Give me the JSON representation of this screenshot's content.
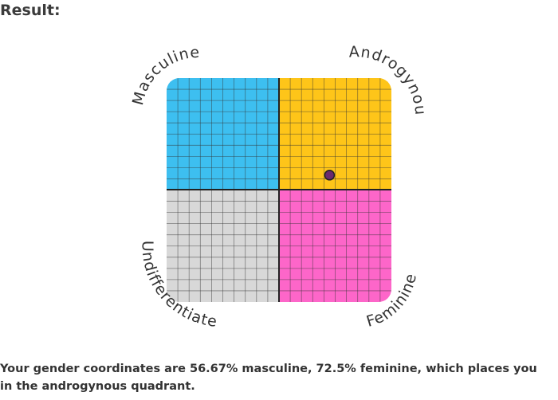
{
  "heading": "Result:",
  "quadrants": {
    "top_left": {
      "label": "Masculine",
      "color": "#3dbff0"
    },
    "top_right": {
      "label": "Androgynous",
      "color": "#fec519"
    },
    "bottom_left": {
      "label": "Undifferentiated",
      "color": "#d8d8d8"
    },
    "bottom_right": {
      "label": "Feminine",
      "color": "#fd66c9"
    }
  },
  "marker": {
    "masculine_percent": 56.67,
    "feminine_percent": 72.5,
    "color": "#6a2a6e"
  },
  "result_text": "Your gender coordinates are 56.67% masculine, 72.5% feminine, which places you in the androgynous quadrant."
}
